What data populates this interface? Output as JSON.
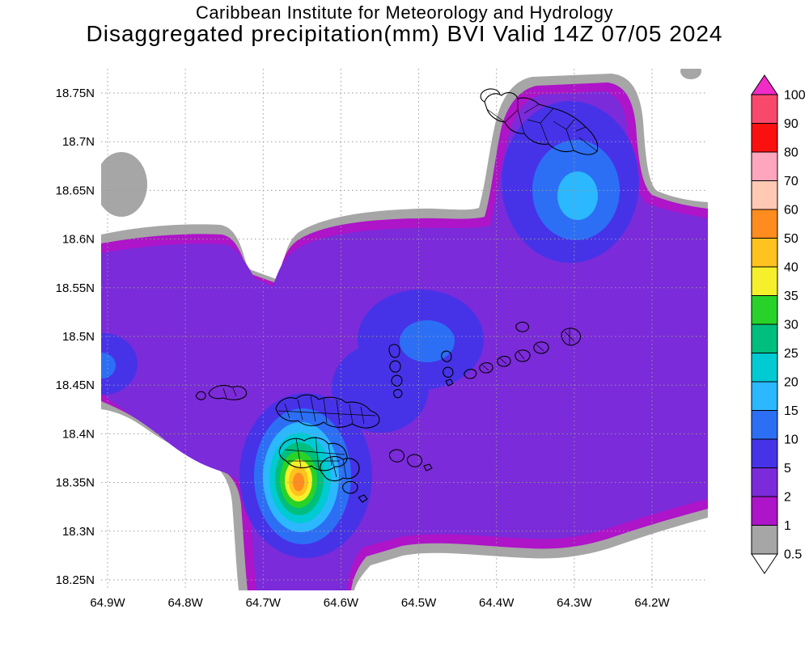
{
  "header": {
    "line1": "Caribbean Institute for Meteorology and Hydrology",
    "line2": "Disaggregated precipitation(mm) BVI Valid 14Z 07/05 2024"
  },
  "map": {
    "lat_ticks": [
      {
        "value": 18.75,
        "label": "18.75N"
      },
      {
        "value": 18.7,
        "label": "18.7N"
      },
      {
        "value": 18.65,
        "label": "18.65N"
      },
      {
        "value": 18.6,
        "label": "18.6N"
      },
      {
        "value": 18.55,
        "label": "18.55N"
      },
      {
        "value": 18.5,
        "label": "18.5N"
      },
      {
        "value": 18.45,
        "label": "18.45N"
      },
      {
        "value": 18.4,
        "label": "18.4N"
      },
      {
        "value": 18.35,
        "label": "18.35N"
      },
      {
        "value": 18.3,
        "label": "18.3N"
      },
      {
        "value": 18.25,
        "label": "18.25N"
      }
    ],
    "lon_ticks": [
      {
        "value": 64.9,
        "label": "64.9W"
      },
      {
        "value": 64.8,
        "label": "64.8W"
      },
      {
        "value": 64.7,
        "label": "64.7W"
      },
      {
        "value": 64.6,
        "label": "64.6W"
      },
      {
        "value": 64.5,
        "label": "64.5W"
      },
      {
        "value": 64.4,
        "label": "64.4W"
      },
      {
        "value": 64.3,
        "label": "64.3W"
      },
      {
        "value": 64.2,
        "label": "64.2W"
      }
    ]
  },
  "colorbar": {
    "tick_labels": [
      "100",
      "90",
      "80",
      "70",
      "60",
      "50",
      "40",
      "35",
      "30",
      "25",
      "20",
      "15",
      "10",
      "5",
      "2",
      "1",
      "0.5"
    ],
    "band_levels_top_to_bottom": [
      "90",
      "80",
      "70",
      "60",
      "50",
      "40",
      "35",
      "30",
      "25",
      "20",
      "15",
      "10",
      "5",
      "2",
      "1",
      "0.5"
    ],
    "fill_by_level": {
      "over": "#F02BC8",
      "90": "#F8486B",
      "80": "#FB1010",
      "70": "#FFA6BE",
      "60": "#FFC9B4",
      "50": "#FF8C1E",
      "40": "#FFC21E",
      "35": "#F5F02B",
      "30": "#28D228",
      "25": "#00BE7D",
      "20": "#00CAD2",
      "15": "#2CB8FF",
      "10": "#2C6FF5",
      "5": "#4633E8",
      "2": "#7B2BD9",
      "1": "#AE14C8",
      "0.5": "#A6A6A6",
      "under": "#FFFFFF"
    }
  },
  "chart_data": {
    "type": "heatmap",
    "subtype": "filled-contour precipitation map (GrADS style)",
    "title": "Caribbean Institute for Meteorology and Hydrology",
    "subtitle": "Disaggregated precipitation(mm) BVI Valid 14Z 07/05 2024",
    "variable": "Disaggregated precipitation",
    "units": "mm",
    "region": "BVI (British Virgin Islands)",
    "valid_time": "14Z 07/05 2024",
    "lat_range_deg_n": [
      18.25,
      18.75
    ],
    "lon_range_deg_w": [
      64.9,
      64.2
    ],
    "x_tick_labels": [
      "64.9W",
      "64.8W",
      "64.7W",
      "64.6W",
      "64.5W",
      "64.4W",
      "64.3W",
      "64.2W"
    ],
    "y_tick_labels": [
      "18.75N",
      "18.7N",
      "18.65N",
      "18.6N",
      "18.55N",
      "18.5N",
      "18.45N",
      "18.4N",
      "18.35N",
      "18.3N",
      "18.25N"
    ],
    "contour_levels_mm": [
      0.5,
      1,
      2,
      5,
      10,
      15,
      20,
      25,
      30,
      35,
      40,
      50,
      60,
      70,
      80,
      90,
      100
    ],
    "grid": true,
    "legend_position": "right vertical colorbar with over/under arrows",
    "features": [
      {
        "name": "primary precipitation maximum",
        "approx_lon": "64.65W",
        "approx_lat": "18.35N",
        "peak_band_mm": "50-60",
        "rings_mm": [
          5,
          10,
          15,
          20,
          25,
          30,
          35,
          40,
          50
        ]
      },
      {
        "name": "secondary maximum northeast",
        "approx_lon": "64.32W",
        "approx_lat": "18.66N",
        "peak_band_mm": "10-15"
      },
      {
        "name": "central light-rain area",
        "approx_lon": "64.5W",
        "approx_lat": "18.5N",
        "peak_band_mm": "5-10"
      },
      {
        "name": "west-edge light-rain area",
        "approx_lon": "64.9W",
        "approx_lat": "18.48N",
        "peak_band_mm": "5-10"
      },
      {
        "name": "background field",
        "band_mm": "2-5 surrounded by 1-2 and 0.5-1 fringes"
      },
      {
        "name": "overlay",
        "description": "black coastline/watershed outlines of the Virgin Islands"
      }
    ]
  }
}
